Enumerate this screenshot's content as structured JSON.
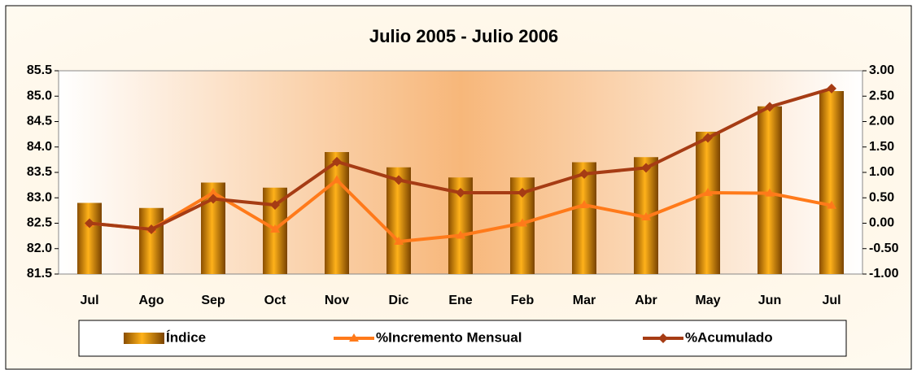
{
  "chart_data": {
    "type": "bar_line",
    "title": "Julio 2005 - Julio 2006",
    "categories": [
      "Jul",
      "Ago",
      "Sep",
      "Oct",
      "Nov",
      "Dic",
      "Ene",
      "Feb",
      "Mar",
      "Abr",
      "May",
      "Jun",
      "Jul"
    ],
    "series": [
      {
        "name": "Índice",
        "type": "bar",
        "color": "#d98a0a",
        "values": [
          82.9,
          82.8,
          83.3,
          83.2,
          83.9,
          83.6,
          83.4,
          83.4,
          83.7,
          83.8,
          84.3,
          84.8,
          85.1
        ]
      },
      {
        "name": "%Incremento Mensual",
        "type": "line",
        "marker": "triangle",
        "axis": "y2",
        "color": "#ff7a1a",
        "values": [
          0.0,
          -0.12,
          0.6,
          -0.12,
          0.85,
          -0.36,
          -0.24,
          0.0,
          0.36,
          0.12,
          0.6,
          0.59,
          0.35
        ]
      },
      {
        "name": "%Acumulado",
        "type": "line",
        "marker": "diamond",
        "axis": "y2",
        "color": "#a63c14",
        "values": [
          0.0,
          -0.12,
          0.48,
          0.36,
          1.21,
          0.85,
          0.6,
          0.6,
          0.97,
          1.09,
          1.68,
          2.29,
          2.65
        ]
      }
    ],
    "ylim": [
      81.5,
      85.5
    ],
    "yticks": [
      81.5,
      {
        "value": 82,
        "label": "82.0"
      },
      82.5,
      {
        "value": 83,
        "label": "83.0"
      },
      83.5,
      {
        "value": 84,
        "label": "84.0"
      },
      84.5,
      {
        "value": 85,
        "label": "85.0"
      },
      85.5
    ],
    "y2lim": [
      -1,
      3
    ],
    "y2ticks": [
      {
        "value": -1,
        "label": "-1.00"
      },
      {
        "value": -0.5,
        "label": "-0.50"
      },
      {
        "value": 0,
        "label": "0.00"
      },
      {
        "value": 0.5,
        "label": "0.50"
      },
      {
        "value": 1,
        "label": "1.00"
      },
      {
        "value": 1.5,
        "label": "1.50"
      },
      {
        "value": 2,
        "label": "2.00"
      },
      {
        "value": 2.5,
        "label": "2.50"
      },
      {
        "value": 3,
        "label": "3.00"
      }
    ],
    "grid": false,
    "legend": "bottom"
  }
}
